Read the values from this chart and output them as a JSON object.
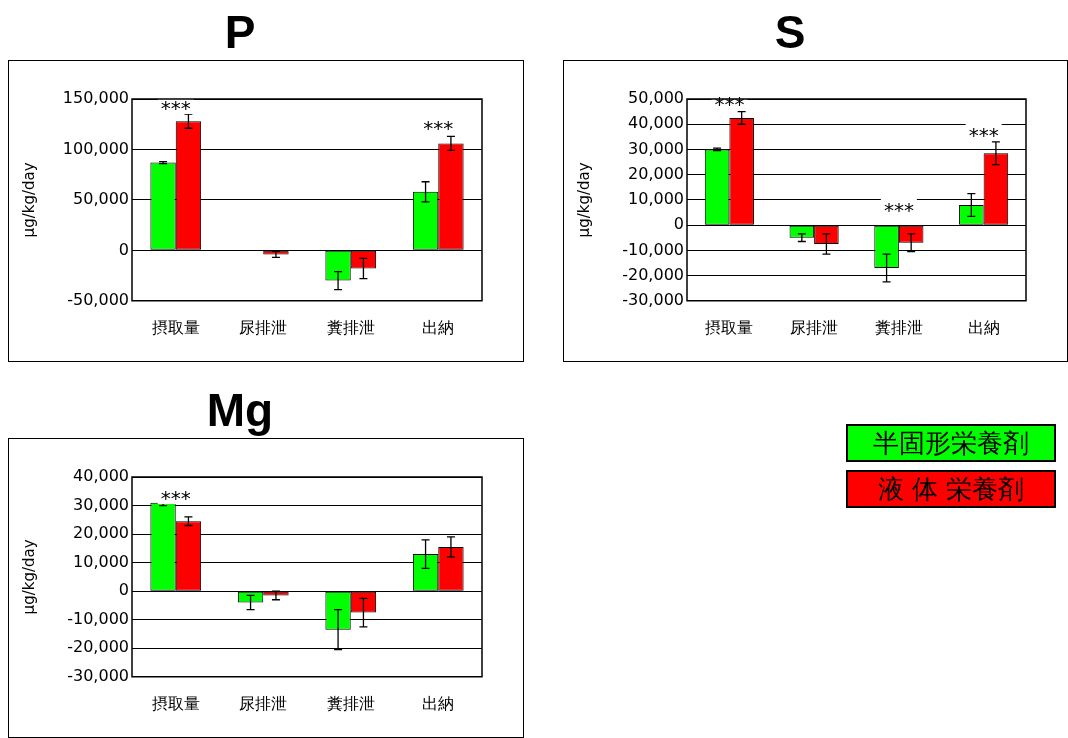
{
  "chart_data": [
    {
      "type": "bar",
      "title": "P",
      "ylabel": "μg/kg/day",
      "categories": [
        "摂取量",
        "尿排泄",
        "糞排泄",
        "出納"
      ],
      "ylim": [
        -50000,
        150000
      ],
      "yticks": [
        {
          "value": -50000,
          "label": "-50,000"
        },
        {
          "value": 0,
          "label": "0"
        },
        {
          "value": 50000,
          "label": "50,000"
        },
        {
          "value": 100000,
          "label": "100,000"
        },
        {
          "value": 150000,
          "label": "150,000"
        }
      ],
      "grid": "y",
      "series": [
        {
          "color": "#00ff00",
          "values": [
            87000,
            0,
            -30000,
            58000
          ],
          "errors": [
            1000,
            null,
            9000,
            10000
          ]
        },
        {
          "color": "#ff0000",
          "values": [
            128000,
            -4000,
            -18000,
            106000
          ],
          "errors": [
            7000,
            3000,
            10000,
            7000
          ]
        }
      ],
      "annotations": [
        "***",
        "***"
      ]
    },
    {
      "type": "bar",
      "title": "S",
      "ylabel": "μg/kg/day",
      "categories": [
        "摂取量",
        "尿排泄",
        "糞排泄",
        "出納"
      ],
      "ylim": [
        -30000,
        50000
      ],
      "yticks": [
        {
          "value": -30000,
          "label": "-30,000"
        },
        {
          "value": -20000,
          "label": "-20,000"
        },
        {
          "value": -10000,
          "label": "-10,000"
        },
        {
          "value": 0,
          "label": "0"
        },
        {
          "value": 10000,
          "label": "10,000"
        },
        {
          "value": 20000,
          "label": "20,000"
        },
        {
          "value": 30000,
          "label": "30,000"
        },
        {
          "value": 40000,
          "label": "40,000"
        },
        {
          "value": 50000,
          "label": "50,000"
        }
      ],
      "grid": "y",
      "series": [
        {
          "color": "#00ff00",
          "values": [
            30000,
            -5000,
            -17000,
            8000
          ],
          "errors": [
            500,
            1500,
            5500,
            4500
          ]
        },
        {
          "color": "#ff0000",
          "values": [
            42500,
            -7500,
            -7000,
            28500
          ],
          "errors": [
            2500,
            4000,
            3500,
            4500
          ]
        }
      ],
      "annotations": [
        "***",
        "***",
        "***"
      ]
    },
    {
      "type": "bar",
      "title": "Mg",
      "ylabel": "μg/kg/day",
      "categories": [
        "摂取量",
        "尿排泄",
        "糞排泄",
        "出納"
      ],
      "ylim": [
        -30000,
        40000
      ],
      "yticks": [
        {
          "value": -30000,
          "label": "-30,000"
        },
        {
          "value": -20000,
          "label": "-20,000"
        },
        {
          "value": -10000,
          "label": "-10,000"
        },
        {
          "value": 0,
          "label": "0"
        },
        {
          "value": 10000,
          "label": "10,000"
        },
        {
          "value": 20000,
          "label": "20,000"
        },
        {
          "value": 30000,
          "label": "30,000"
        },
        {
          "value": 40000,
          "label": "40,000"
        }
      ],
      "grid": "y",
      "legend": "right",
      "series": [
        {
          "name": "半固形栄養剤",
          "color": "#00ff00",
          "values": [
            31000,
            -4000,
            -13500,
            13000
          ],
          "errors": [
            1000,
            2500,
            7000,
            5000
          ]
        },
        {
          "name": "液 体 栄養剤",
          "color": "#ff0000",
          "values": [
            24500,
            -1500,
            -7500,
            15500
          ],
          "errors": [
            1500,
            1500,
            5000,
            3500
          ]
        }
      ],
      "annotations": [
        "***"
      ]
    }
  ]
}
